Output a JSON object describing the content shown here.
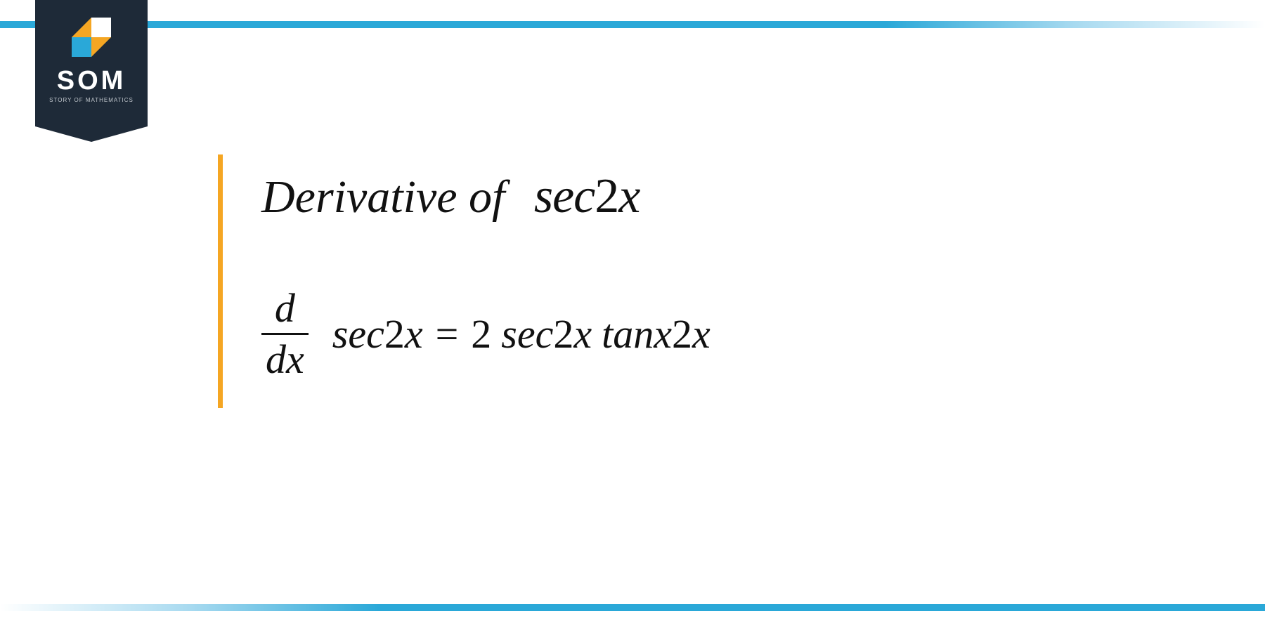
{
  "brand": {
    "acronym": "SOM",
    "subtitle": "STORY OF MATHEMATICS",
    "badge_bg": "#1e2a38",
    "accent_orange": "#f5a623",
    "accent_blue": "#2aa8d8"
  },
  "accent_bar_color": "#f5a623",
  "title": {
    "prefix": "Derivative of",
    "func_letters": "sec",
    "func_num": "2",
    "func_var": "x"
  },
  "formula": {
    "d_num": "d",
    "d_den": "dx",
    "lhs_func": "sec",
    "lhs_num": "2",
    "lhs_var": "x",
    "eq": "=",
    "coeff": "2",
    "rhs_a_func": "sec",
    "rhs_a_num": "2",
    "rhs_a_var": "x",
    "rhs_b_func": "tanx",
    "rhs_b_num": "2",
    "rhs_b_var": "x"
  }
}
